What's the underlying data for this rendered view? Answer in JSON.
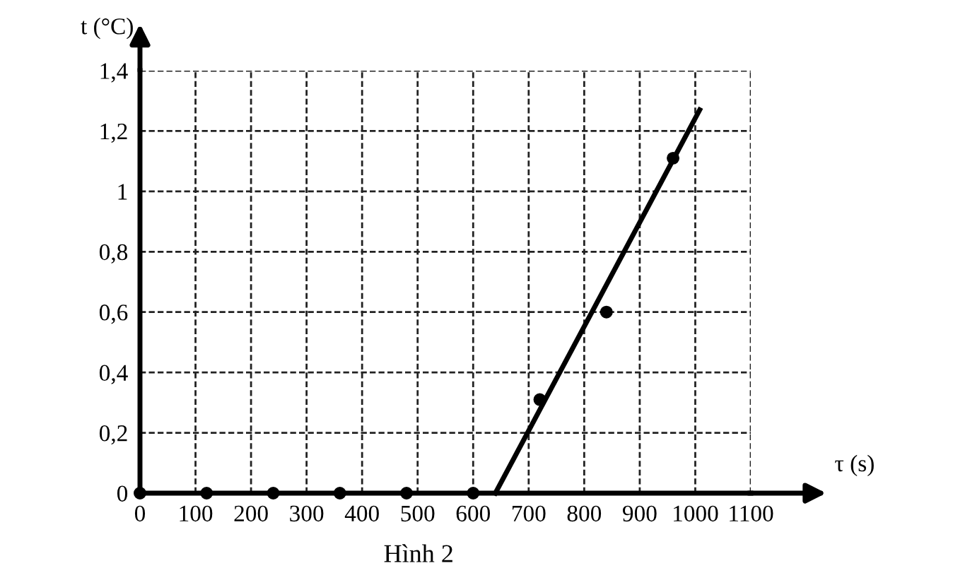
{
  "chart_data": {
    "type": "scatter",
    "xlabel": "τ (s)",
    "ylabel": "t (°C)",
    "annotations": [
      "Hình 2"
    ],
    "series": [
      {
        "color": "#000000",
        "x": [
          0,
          120,
          240,
          360,
          480,
          600,
          720,
          840,
          960
        ],
        "values": [
          0,
          0,
          0,
          0,
          0,
          0,
          0.31,
          0.6,
          1.11
        ],
        "marker": "circle"
      },
      {
        "type": "line",
        "color": "#000000",
        "x": [
          640,
          1008
        ],
        "values": [
          0,
          1.27
        ],
        "line_style": "solid"
      }
    ],
    "xlim": [
      0,
      1100
    ],
    "ylim": [
      0,
      1.4
    ],
    "xticks": [
      0,
      100,
      200,
      300,
      400,
      500,
      600,
      700,
      800,
      900,
      1000,
      1100
    ],
    "yticks": [
      {
        "value": 0,
        "label": "0"
      },
      {
        "value": 0.2,
        "label": "0,2"
      },
      {
        "value": 0.4,
        "label": "0,4"
      },
      {
        "value": 0.6,
        "label": "0,6"
      },
      {
        "value": 0.8,
        "label": "0,8"
      },
      {
        "value": 1,
        "label": "1"
      },
      {
        "value": 1.2,
        "label": "1,2"
      },
      {
        "value": 1.4,
        "label": "1,4"
      }
    ],
    "grid": true
  }
}
